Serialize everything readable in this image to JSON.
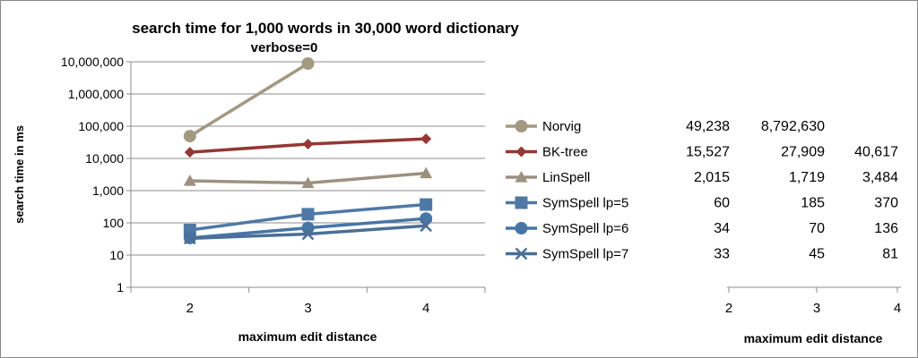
{
  "chart_data": {
    "type": "line",
    "title": "search time for 1,000 words in 30,000 word dictionary",
    "subtitle": "verbose=0",
    "xlabel": "maximum edit distance",
    "ylabel": "search time in ms",
    "y_scale": "log",
    "ylim": [
      1,
      10000000
    ],
    "y_ticks": [
      1,
      10,
      100,
      1000,
      10000,
      100000,
      1000000,
      10000000
    ],
    "y_tick_labels": [
      "1",
      "10",
      "100",
      "1,000",
      "10,000",
      "100,000",
      "1,000,000",
      "10,000,000"
    ],
    "categories": [
      "2",
      "3",
      "4"
    ],
    "grid": "horizontal",
    "legend_position": "right",
    "series": [
      {
        "name": "Norvig",
        "values": [
          49238,
          8792630,
          null
        ],
        "value_labels": [
          "49,238",
          "8,792,630",
          ""
        ],
        "color": "#A39982",
        "marker": "circle"
      },
      {
        "name": "BK-tree",
        "values": [
          15527,
          27909,
          40617
        ],
        "value_labels": [
          "15,527",
          "27,909",
          "40,617"
        ],
        "color": "#953735",
        "marker": "diamond"
      },
      {
        "name": "LinSpell",
        "values": [
          2015,
          1719,
          3484
        ],
        "value_labels": [
          "2,015",
          "1,719",
          "3,484"
        ],
        "color": "#9C917F",
        "marker": "triangle"
      },
      {
        "name": "SymSpell lp=5",
        "values": [
          60,
          185,
          370
        ],
        "value_labels": [
          "60",
          "185",
          "370"
        ],
        "color": "#4F78A6",
        "marker": "square"
      },
      {
        "name": "SymSpell lp=6",
        "values": [
          34,
          70,
          136
        ],
        "value_labels": [
          "34",
          "70",
          "136"
        ],
        "color": "#4775A6",
        "marker": "circle"
      },
      {
        "name": "SymSpell lp=7",
        "values": [
          33,
          45,
          81
        ],
        "value_labels": [
          "33",
          "45",
          "81"
        ],
        "color": "#4A6F96",
        "marker": "x"
      }
    ],
    "data_table": {
      "categories": [
        "2",
        "3",
        "4"
      ],
      "xlabel": "maximum edit distance"
    }
  }
}
